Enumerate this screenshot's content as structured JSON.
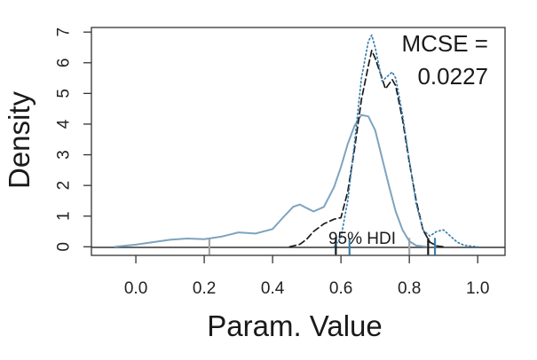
{
  "chart_data": {
    "type": "line",
    "title": "",
    "xlabel": "Param. Value",
    "ylabel": "Density",
    "xlim": [
      -0.13,
      1.08
    ],
    "ylim": [
      -0.28,
      7.15
    ],
    "x_ticks": [
      "0.0",
      "0.2",
      "0.4",
      "0.6",
      "0.8",
      "1.0"
    ],
    "y_ticks": [
      "0",
      "1",
      "2",
      "3",
      "4",
      "5",
      "6",
      "7"
    ],
    "annotation_line1": "MCSE =",
    "annotation_line2": "0.0227",
    "hdi_label": "95% HDI",
    "series": [
      {
        "style": "solid",
        "color": "#7ea3bf",
        "x": [
          -0.06,
          0.0,
          0.05,
          0.1,
          0.15,
          0.2,
          0.25,
          0.3,
          0.35,
          0.4,
          0.43,
          0.46,
          0.48,
          0.5,
          0.52,
          0.55,
          0.58,
          0.6,
          0.62,
          0.64,
          0.66,
          0.68,
          0.7,
          0.72,
          0.74,
          0.76,
          0.78,
          0.8,
          0.82,
          0.85
        ],
        "y": [
          0.0,
          0.07,
          0.15,
          0.23,
          0.27,
          0.25,
          0.33,
          0.47,
          0.43,
          0.58,
          0.95,
          1.3,
          1.38,
          1.26,
          1.15,
          1.3,
          1.95,
          2.6,
          3.35,
          3.95,
          4.3,
          4.25,
          3.8,
          2.9,
          2.0,
          1.15,
          0.55,
          0.18,
          0.04,
          0.0
        ]
      },
      {
        "style": "dashed",
        "color": "#1a1a1a",
        "x": [
          0.45,
          0.48,
          0.5,
          0.52,
          0.55,
          0.58,
          0.6,
          0.62,
          0.64,
          0.66,
          0.68,
          0.69,
          0.7,
          0.72,
          0.73,
          0.75,
          0.76,
          0.78,
          0.8,
          0.82,
          0.84,
          0.86,
          0.88,
          0.9
        ],
        "y": [
          0.0,
          0.08,
          0.25,
          0.5,
          0.75,
          0.9,
          0.95,
          1.8,
          3.2,
          4.8,
          5.9,
          6.4,
          6.15,
          5.5,
          5.15,
          5.45,
          5.25,
          4.15,
          2.75,
          1.5,
          0.55,
          0.15,
          0.03,
          0.0
        ]
      },
      {
        "style": "dotted",
        "color": "#3a7fb0",
        "x": [
          0.58,
          0.6,
          0.62,
          0.64,
          0.66,
          0.68,
          0.69,
          0.7,
          0.72,
          0.74,
          0.75,
          0.76,
          0.78,
          0.8,
          0.82,
          0.84,
          0.86,
          0.88,
          0.9,
          0.92,
          0.94,
          0.96,
          0.98,
          1.0
        ],
        "y": [
          0.0,
          0.3,
          1.5,
          3.4,
          5.5,
          6.7,
          6.9,
          6.5,
          5.4,
          5.6,
          5.7,
          5.5,
          4.3,
          2.8,
          1.4,
          0.55,
          0.35,
          0.5,
          0.55,
          0.35,
          0.15,
          0.05,
          0.02,
          0.0
        ]
      }
    ],
    "hdi_intervals": [
      {
        "color": "#a6a6a6",
        "low": 0.215,
        "high": 0.8
      },
      {
        "color": "#1a1a1a",
        "low": 0.585,
        "high": 0.855
      },
      {
        "color": "#3a7fb0",
        "low": 0.625,
        "high": 0.875
      }
    ]
  }
}
